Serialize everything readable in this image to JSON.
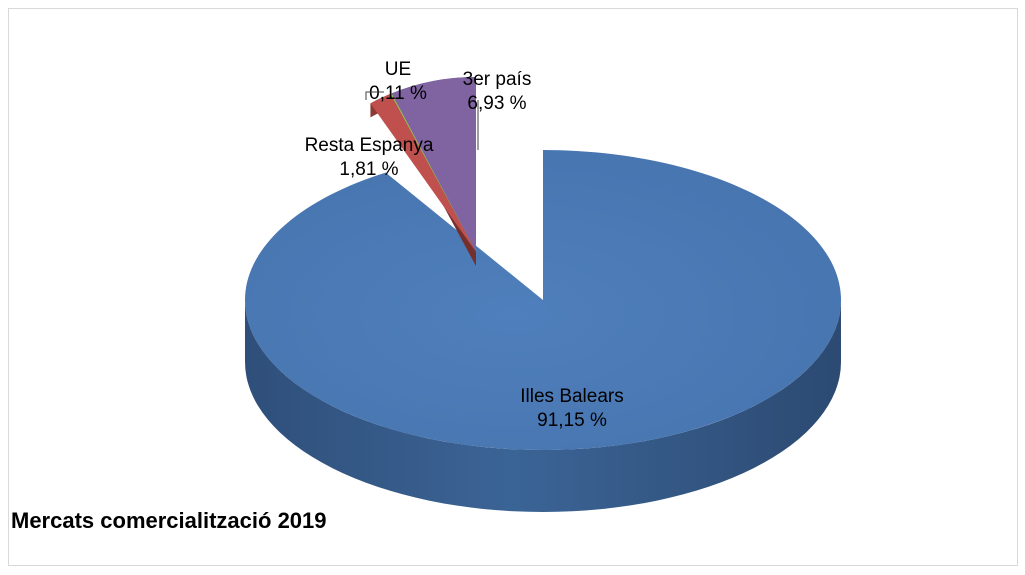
{
  "chart_data": {
    "type": "pie",
    "title": "Mercats comercialització 2019",
    "unit": "%",
    "slices": [
      {
        "label": "Illes Balears",
        "value": 91.15,
        "value_text": "91,15 %",
        "color": "#4F81BD"
      },
      {
        "label": "Resta Espanya",
        "value": 1.81,
        "value_text": "1,81 %",
        "color": "#C0504D"
      },
      {
        "label": "UE",
        "value": 0.11,
        "value_text": "0,11 %",
        "color": "#9BBB59"
      },
      {
        "label": "3er país",
        "value": 6.93,
        "value_text": "6,93 %",
        "color": "#8064A2"
      }
    ],
    "style": "3d-exploded",
    "legend": "none"
  }
}
